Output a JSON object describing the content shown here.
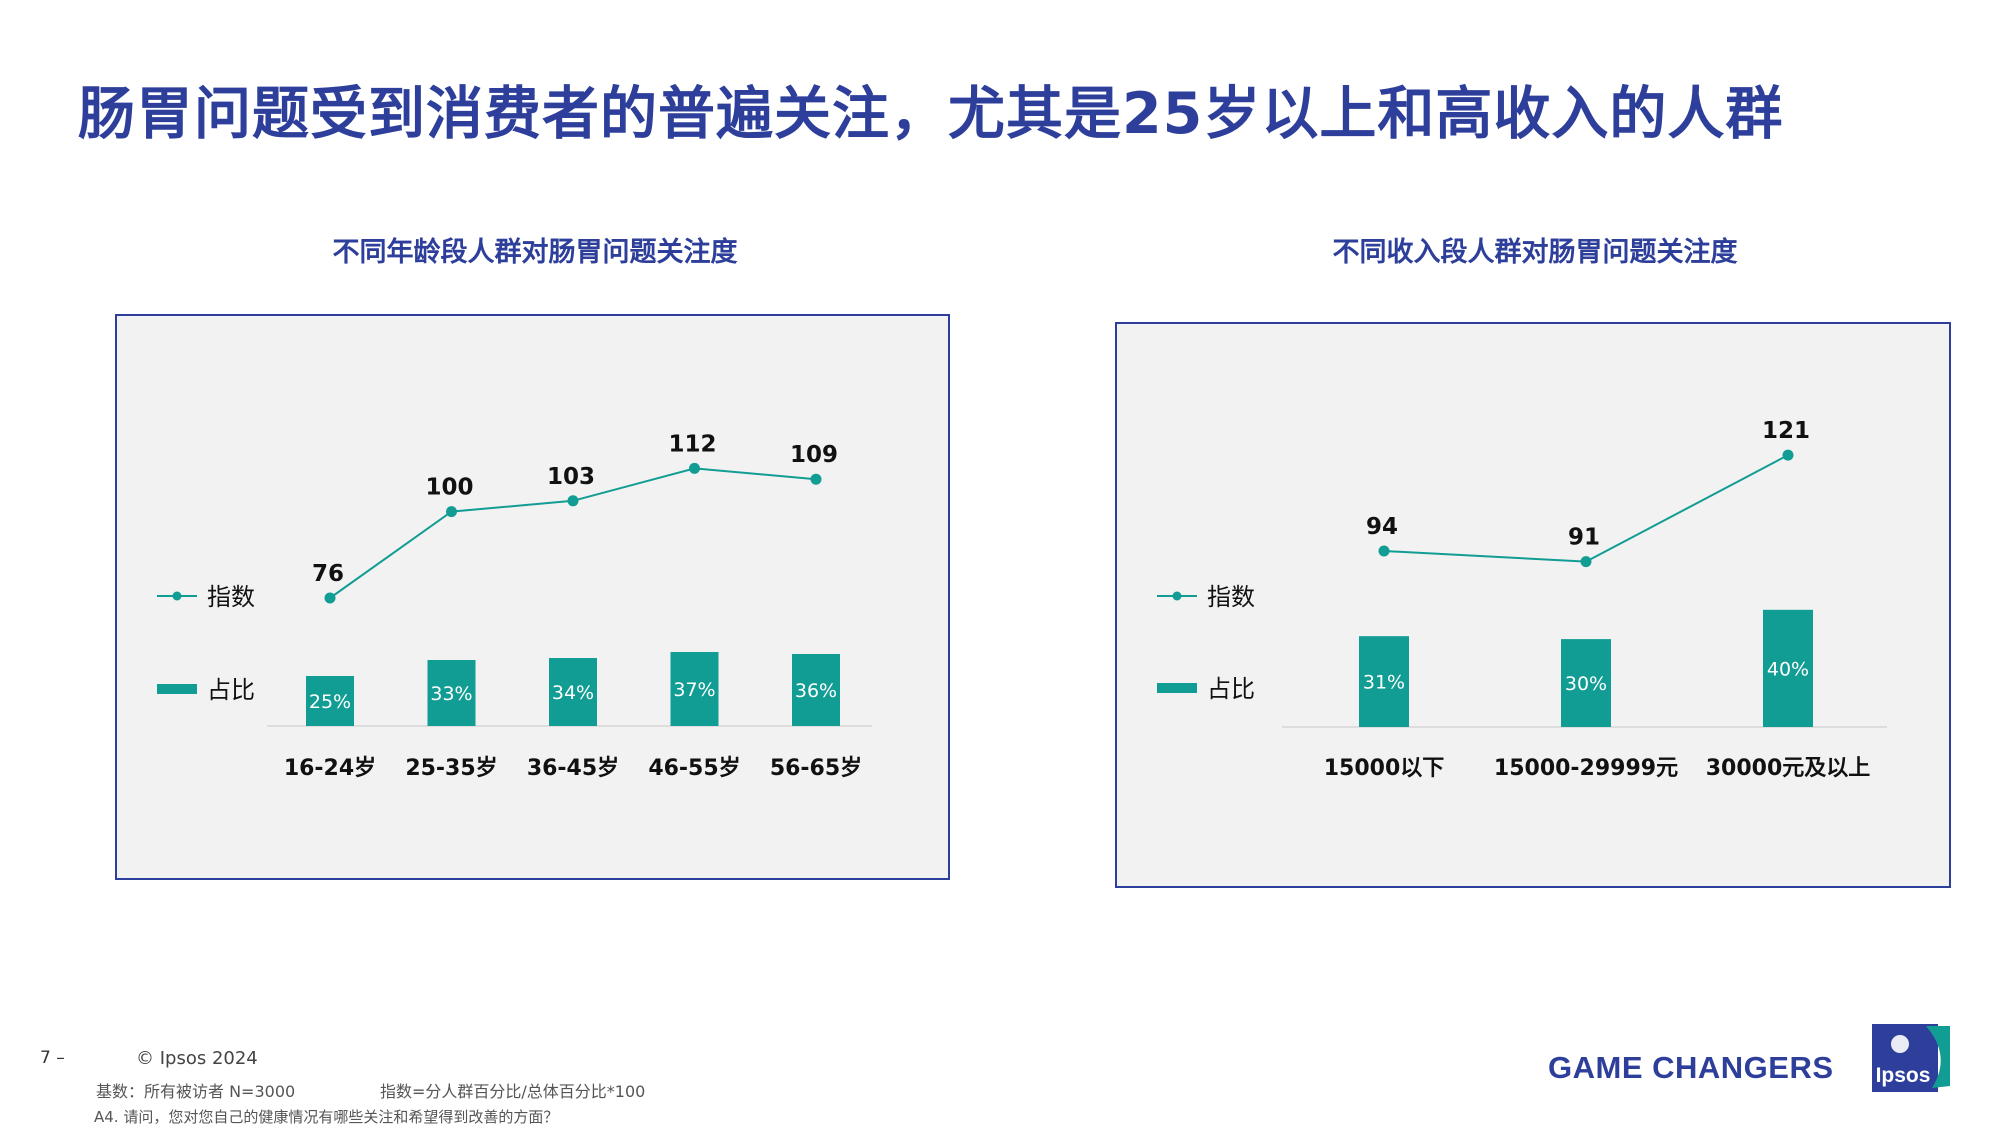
{
  "header": {
    "title": "肠胃问题受到消费者的普遍关注，尤其是25岁以上和高收入的人群"
  },
  "legend": {
    "line_label": "指数",
    "bar_label": "占比"
  },
  "colors": {
    "accent": "#119d93",
    "title": "#2d3f9a",
    "panel_bg": "#f2f2f2"
  },
  "chart_data": [
    {
      "type": "bar",
      "title": "不同年龄段人群对肠胃问题关注度",
      "categories": [
        "16-24岁",
        "25-35岁",
        "36-45岁",
        "46-55岁",
        "56-65岁"
      ],
      "series": [
        {
          "name": "占比",
          "type": "bar",
          "values": [
            25,
            33,
            34,
            37,
            36
          ],
          "labels": [
            "25%",
            "33%",
            "34%",
            "37%",
            "36%"
          ]
        },
        {
          "name": "指数",
          "type": "line",
          "values": [
            76,
            100,
            103,
            112,
            109
          ]
        }
      ]
    },
    {
      "type": "bar",
      "title": "不同收入段人群对肠胃问题关注度",
      "categories": [
        "15000以下",
        "15000-29999元",
        "30000元及以上"
      ],
      "series": [
        {
          "name": "占比",
          "type": "bar",
          "values": [
            31,
            30,
            40
          ],
          "labels": [
            "31%",
            "30%",
            "40%"
          ]
        },
        {
          "name": "指数",
          "type": "line",
          "values": [
            94,
            91,
            121
          ]
        }
      ]
    }
  ],
  "footer": {
    "page": "7 –",
    "copyright": "© Ipsos 2024",
    "base": "基数：所有被访者  N=3000",
    "index_note": "指数=分人群百分比/总体百分比*100",
    "question": "A4. 请问，您对您自己的健康情况有哪些关注和希望得到改善的方面？",
    "brand": "GAME CHANGERS",
    "logo_text": "Ipsos"
  }
}
